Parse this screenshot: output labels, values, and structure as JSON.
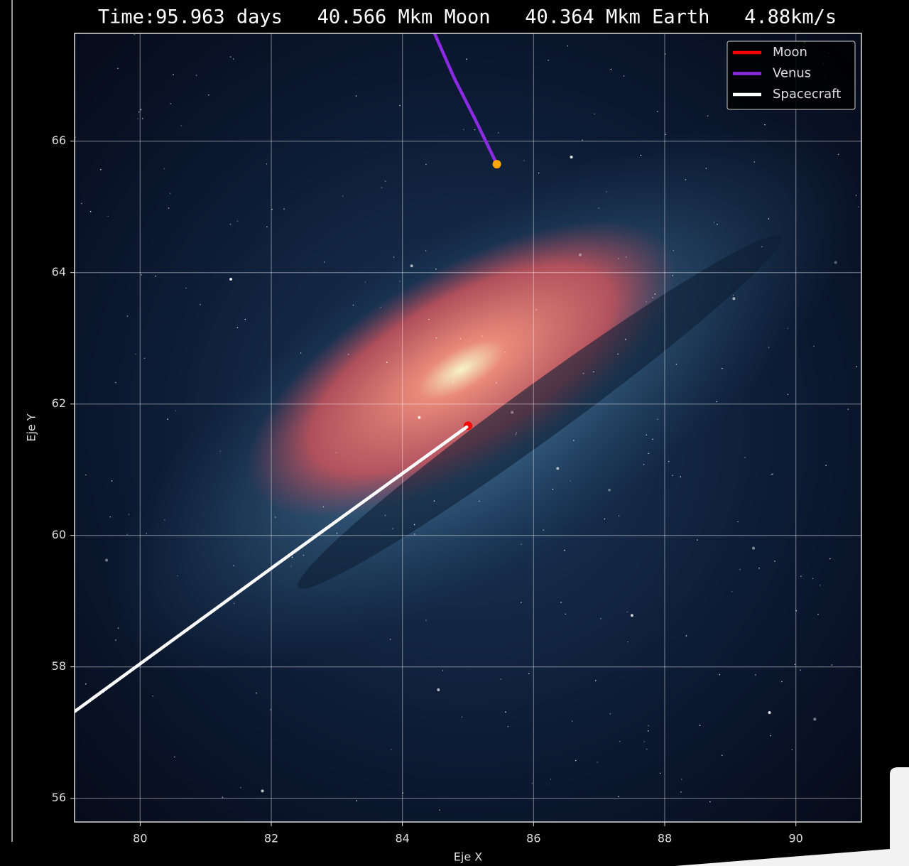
{
  "chart_data": {
    "type": "line",
    "title": "Time:95.963 days   40.566 Mkm Moon   40.364 Mkm Earth   4.88km/s",
    "x_label": "Eje X",
    "y_label": "Eje Y",
    "xlim": [
      79.0,
      91.0
    ],
    "ylim": [
      55.64,
      67.64
    ],
    "xticks": [
      80,
      82,
      84,
      86,
      88,
      90
    ],
    "yticks": [
      56,
      58,
      60,
      62,
      64,
      66
    ],
    "grid": true,
    "legend": "upper right",
    "series": [
      {
        "name": "Moon",
        "color": "#ff0000",
        "end_marker": "#ff0000",
        "x": [
          84.95,
          85.0
        ],
        "y": [
          61.64,
          61.67
        ]
      },
      {
        "name": "Venus",
        "color": "#8a2be2",
        "end_marker": "#ffa500",
        "x": [
          84.49,
          84.79,
          85.12,
          85.44
        ],
        "y": [
          67.64,
          66.96,
          66.31,
          65.65
        ]
      },
      {
        "name": "Spacecraft",
        "color": "#ffffff",
        "x": [
          79.0,
          82.0,
          84.98
        ],
        "y": [
          57.32,
          59.5,
          61.65
        ]
      }
    ]
  }
}
